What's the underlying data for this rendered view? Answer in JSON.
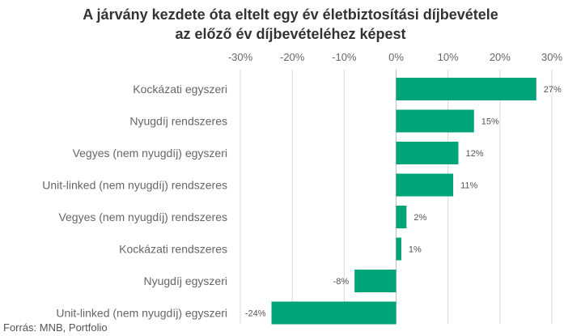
{
  "title_line1": "A járvány kezdete óta eltelt egy év életbiztosítási díjbevétele",
  "title_line2": "az előző év díjbevételéhez képest",
  "source": "Forrás: MNB, Portfolio",
  "colors": {
    "bar": "#00a37a",
    "grid": "#d9d9d9",
    "text": "#666666"
  },
  "chart_data": {
    "type": "bar",
    "orientation": "horizontal",
    "title": "A járvány kezdete óta eltelt egy év életbiztosítási díjbevétele az előző év díjbevételéhez képest",
    "categories": [
      "Kockázati egyszeri",
      "Nyugdíj rendszeres",
      "Vegyes (nem nyugdíj) egyszeri",
      "Unit-linked (nem nyugdíj) rendszeres",
      "Vegyes (nem nyugdíj) rendszeres",
      "Kockázati rendszeres",
      "Nyugdíj egyszeri ",
      "Unit-linked (nem nyugdíj) egyszeri"
    ],
    "values": [
      27,
      15,
      12,
      11,
      2,
      1,
      -8,
      -24
    ],
    "data_labels": [
      "27%",
      "15%",
      "12%",
      "11%",
      "2%",
      "1%",
      "-8%",
      "-24%"
    ],
    "xlim": [
      -30,
      30
    ],
    "xticks": [
      -30,
      -20,
      -10,
      0,
      10,
      20,
      30
    ],
    "xtick_labels": [
      "-30%",
      "-20%",
      "-10%",
      "0%",
      "10%",
      "20%",
      "30%"
    ],
    "axis_position": "top",
    "grid": true,
    "legend": "none"
  }
}
